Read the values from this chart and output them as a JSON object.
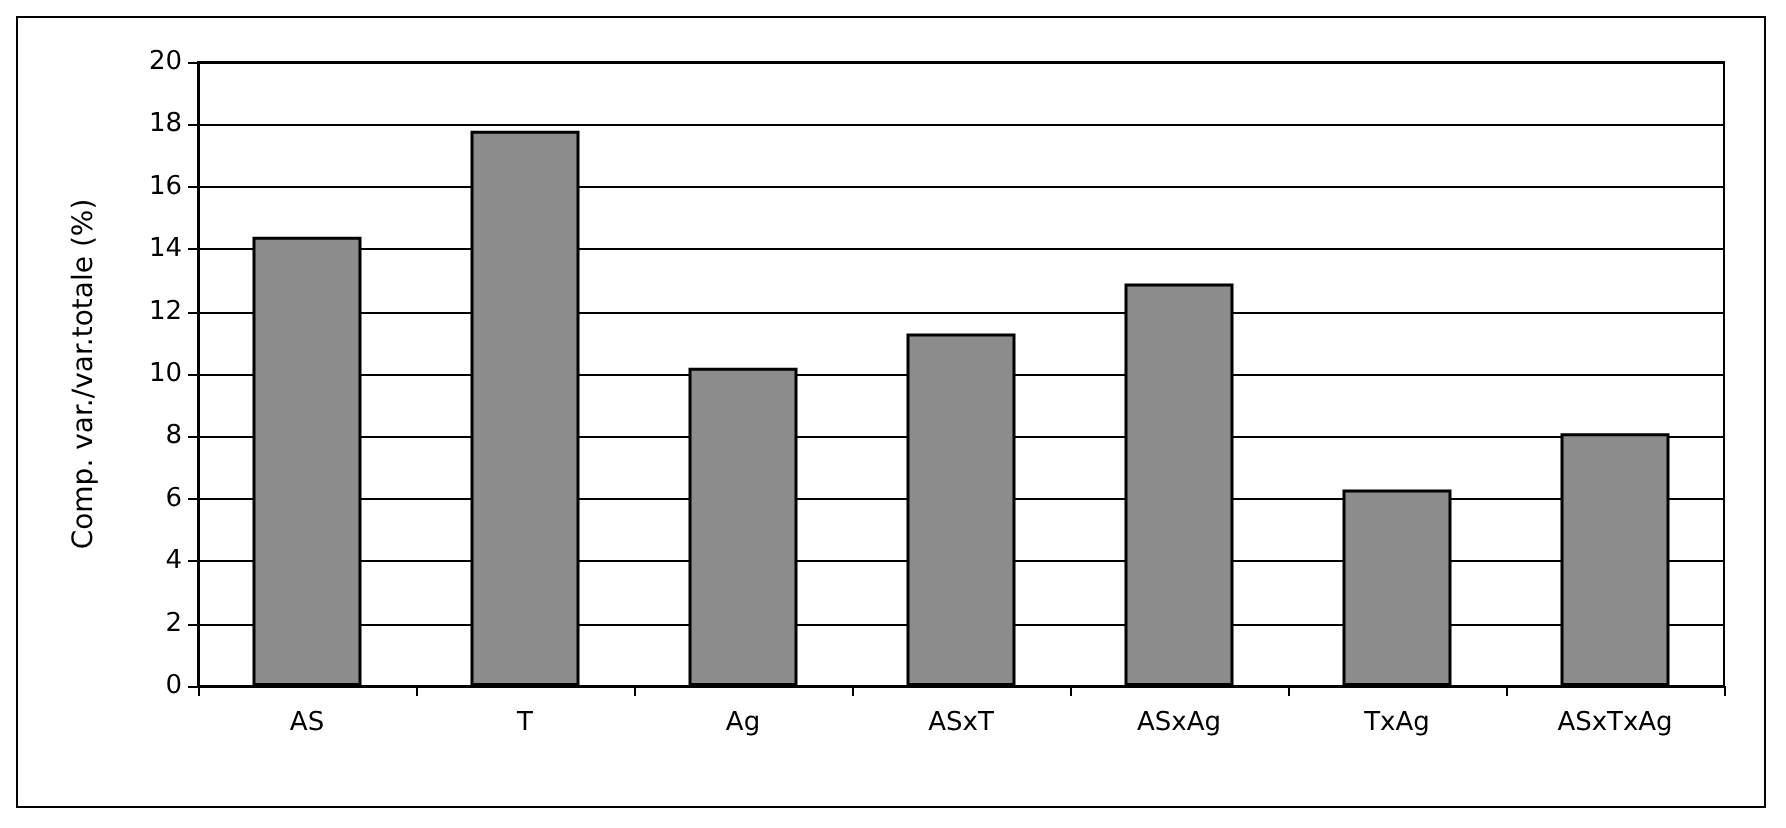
{
  "chart_data": {
    "type": "bar",
    "ylabel": "Comp. var./var.totale (%)",
    "categories": [
      "AS",
      "T",
      "Ag",
      "ASxT",
      "ASxAg",
      "TxAg",
      "ASxTxAg"
    ],
    "values": [
      14.4,
      17.8,
      10.2,
      11.3,
      12.9,
      6.3,
      8.1
    ],
    "color": "#8c8c8c",
    "ylim": [
      0,
      20
    ],
    "yticks": [
      0,
      2,
      4,
      6,
      8,
      10,
      12,
      14,
      16,
      18,
      20
    ],
    "grid": "y"
  }
}
